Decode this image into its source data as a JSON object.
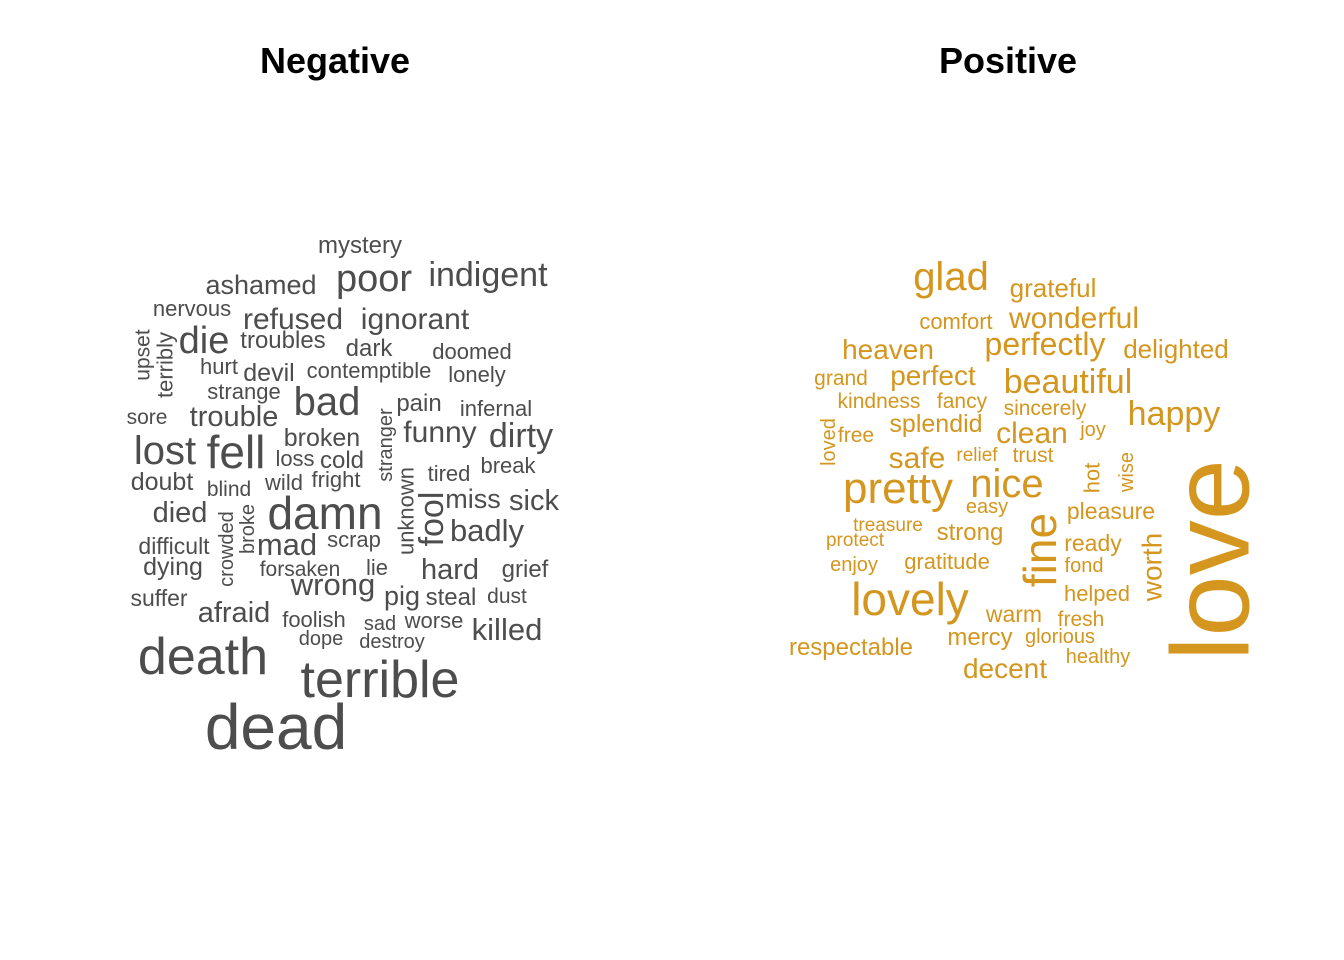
{
  "chart_data": {
    "type": "wordcloud",
    "panels": [
      {
        "title": "Negative",
        "color": "#4D4D4D",
        "words": [
          "mystery",
          "ashamed",
          "poor",
          "indigent",
          "nervous",
          "refused",
          "ignorant",
          "upset",
          "terribly",
          "die",
          "troubles",
          "dark",
          "doomed",
          "hurt",
          "devil",
          "contemptible",
          "lonely",
          "strange",
          "bad",
          "pain",
          "infernal",
          "sore",
          "trouble",
          "stranger",
          "broken",
          "funny",
          "dirty",
          "lost",
          "fell",
          "loss",
          "cold",
          "break",
          "tired",
          "doubt",
          "wild",
          "fright",
          "unknown",
          "blind",
          "damn",
          "fool",
          "miss",
          "sick",
          "died",
          "broke",
          "crowded",
          "badly",
          "difficult",
          "mad",
          "scrap",
          "dying",
          "forsaken",
          "lie",
          "hard",
          "grief",
          "wrong",
          "suffer",
          "pig",
          "steal",
          "dust",
          "afraid",
          "foolish",
          "sad",
          "worse",
          "killed",
          "dope",
          "destroy",
          "death",
          "terrible",
          "dead"
        ]
      },
      {
        "title": "Positive",
        "color": "#D4961E",
        "words": [
          "glad",
          "grateful",
          "comfort",
          "wonderful",
          "heaven",
          "perfectly",
          "delighted",
          "grand",
          "perfect",
          "beautiful",
          "kindness",
          "fancy",
          "sincerely",
          "happy",
          "loved",
          "free",
          "splendid",
          "clean",
          "joy",
          "relief",
          "trust",
          "safe",
          "wise",
          "hot",
          "pretty",
          "nice",
          "easy",
          "pleasure",
          "treasure",
          "strong",
          "fine",
          "love",
          "protect",
          "ready",
          "enjoy",
          "gratitude",
          "fond",
          "worth",
          "lovely",
          "helped",
          "warm",
          "fresh",
          "respectable",
          "mercy",
          "glorious",
          "healthy",
          "decent"
        ]
      }
    ]
  }
}
